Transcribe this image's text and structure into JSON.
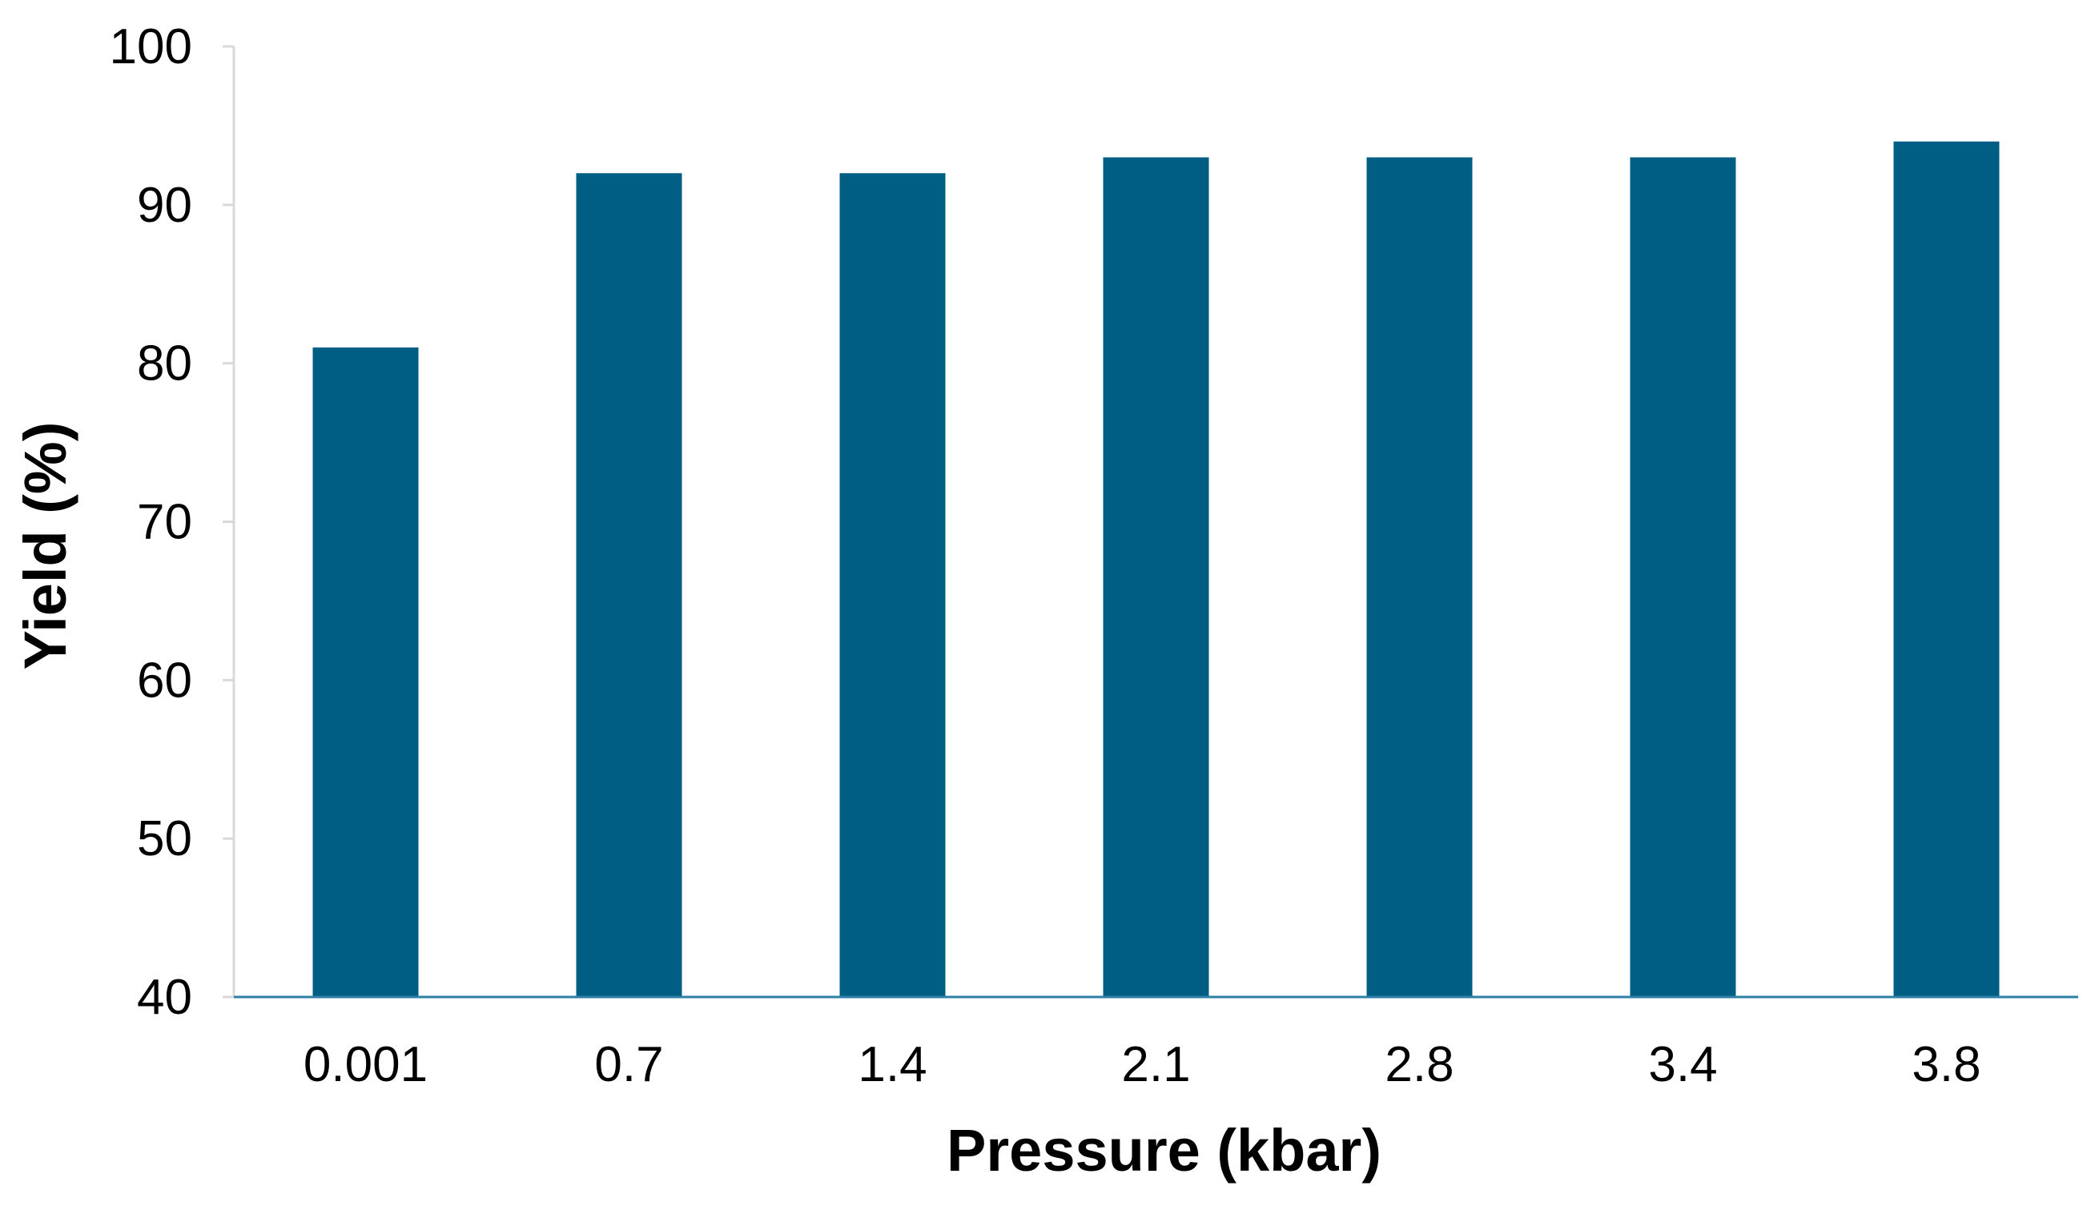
{
  "chart_data": {
    "type": "bar",
    "title": "",
    "xlabel": "Pressure (kbar)",
    "ylabel": "Yield (%)",
    "categories": [
      "0.001",
      "0.7",
      "1.4",
      "2.1",
      "2.8",
      "3.4",
      "3.8"
    ],
    "values": [
      81,
      92,
      92,
      93,
      93,
      93,
      94
    ],
    "ylim": [
      40,
      100
    ],
    "yticks": [
      "40",
      "50",
      "60",
      "70",
      "80",
      "90",
      "100"
    ],
    "grid": false,
    "legend": "none",
    "colors": {
      "bar": "#005E85",
      "axis": "#2F7FA6",
      "y_axis_line": "#D9D9D9"
    }
  }
}
